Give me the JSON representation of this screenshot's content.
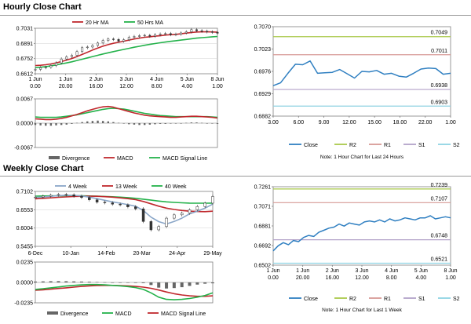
{
  "sections": {
    "hourly_title": "Hourly Close Chart",
    "weekly_title": "Weekly Close Chart"
  },
  "colors": {
    "red": "#c0282d",
    "green": "#24b24b",
    "blue": "#2f7fc1",
    "steel": "#8aa6c8",
    "r2": "#a9c84a",
    "r1": "#d79a96",
    "s1": "#b3a2c9",
    "s2": "#8fd3e3",
    "bar": "#666666",
    "grid": "#d0d0d0",
    "axis": "#7f7f7f"
  },
  "chart_data": [
    {
      "id": "hourly_price",
      "type": "line",
      "title": "Hourly Close Chart",
      "ylim": [
        0.6612,
        0.7031
      ],
      "y_ticks": [
        "0.7031",
        "0.6891",
        "0.6752",
        "0.6612"
      ],
      "x_ticks": [
        [
          "1 Jun",
          "0.00"
        ],
        [
          "1 Jun",
          "20.00"
        ],
        [
          "2 Jun",
          "16.00"
        ],
        [
          "3 Jun",
          "12.00"
        ],
        [
          "4 Jun",
          "8.00"
        ],
        [
          "5 Jun",
          "4.00"
        ],
        [
          "8 Jun",
          "1.00"
        ]
      ],
      "legend": [
        "20 Hr MA",
        "50 Hrs MA"
      ],
      "close": [
        0.6652,
        0.6668,
        0.6672,
        0.6688,
        0.6712,
        0.6748,
        0.6768,
        0.6782,
        0.6816,
        0.6852,
        0.6858,
        0.6872,
        0.6895,
        0.6918,
        0.6932,
        0.6928,
        0.6912,
        0.6925,
        0.6948,
        0.6955,
        0.6962,
        0.6966,
        0.6958,
        0.6972,
        0.6978,
        0.6982,
        0.6972,
        0.6976,
        0.6988,
        0.6998,
        0.7018,
        0.7008,
        0.7004,
        0.6998,
        0.6994,
        0.6985
      ],
      "ma20": [
        0.6688,
        0.669,
        0.6695,
        0.6702,
        0.6712,
        0.6724,
        0.6738,
        0.6752,
        0.677,
        0.679,
        0.681,
        0.683,
        0.6848,
        0.6866,
        0.688,
        0.6892,
        0.6902,
        0.6912,
        0.6922,
        0.6932,
        0.694,
        0.6948,
        0.6952,
        0.6958,
        0.6962,
        0.6968,
        0.6972,
        0.6975,
        0.698,
        0.6986,
        0.6992,
        0.6996,
        0.6998,
        0.6998,
        0.6997,
        0.6994
      ],
      "ma50": [
        0.6668,
        0.6672,
        0.6678,
        0.6685,
        0.6693,
        0.6702,
        0.6712,
        0.6722,
        0.6734,
        0.6746,
        0.6758,
        0.677,
        0.6782,
        0.6794,
        0.6805,
        0.6816,
        0.6826,
        0.6836,
        0.6846,
        0.6856,
        0.6865,
        0.6874,
        0.6882,
        0.689,
        0.6897,
        0.6904,
        0.691,
        0.6916,
        0.6922,
        0.6928,
        0.6934,
        0.694,
        0.6944,
        0.6948,
        0.6952,
        0.6955
      ]
    },
    {
      "id": "hourly_macd",
      "type": "bar",
      "ylim": [
        -0.0067,
        0.0067
      ],
      "y_ticks": [
        "0.0067",
        "0.0000",
        "-0.0067"
      ],
      "legend": [
        "Divergence",
        "MACD",
        "MACD Signal Line"
      ],
      "divergence": [
        -0.0005,
        -0.0006,
        -0.0007,
        -0.0007,
        -0.0006,
        -0.0005,
        -0.0004,
        -0.0002,
        0.0001,
        0.0003,
        0.0005,
        0.0006,
        0.0007,
        0.0006,
        0.0005,
        0.0003,
        0.0001,
        -0.0001,
        -0.0003,
        -0.0004,
        -0.0005,
        -0.0005,
        -0.0004,
        -0.0003,
        -0.0002,
        -0.0002,
        -0.0001,
        -0.0001,
        0.0,
        0.0001,
        0.0002,
        0.0002,
        0.0001,
        0.0,
        -0.0001,
        -0.0002
      ],
      "macd": [
        0.0012,
        0.0011,
        0.001,
        0.001,
        0.0011,
        0.0013,
        0.0016,
        0.002,
        0.0024,
        0.0029,
        0.0034,
        0.0038,
        0.0042,
        0.0045,
        0.0046,
        0.0044,
        0.004,
        0.0036,
        0.0032,
        0.0028,
        0.0025,
        0.0022,
        0.002,
        0.0019,
        0.0018,
        0.0017,
        0.0016,
        0.0016,
        0.0017,
        0.0018,
        0.0019,
        0.0019,
        0.0018,
        0.0017,
        0.0016,
        0.0014
      ],
      "signal": [
        0.0017,
        0.0016,
        0.0016,
        0.0016,
        0.0016,
        0.0017,
        0.0019,
        0.0021,
        0.0023,
        0.0026,
        0.0029,
        0.0032,
        0.0035,
        0.0038,
        0.004,
        0.0041,
        0.004,
        0.0039,
        0.0036,
        0.0033,
        0.003,
        0.0027,
        0.0025,
        0.0023,
        0.0021,
        0.002,
        0.0019,
        0.0018,
        0.0018,
        0.0018,
        0.0018,
        0.0018,
        0.0018,
        0.0018,
        0.0017,
        0.0016
      ]
    },
    {
      "id": "hourly_24h",
      "type": "line",
      "ylim": [
        0.6882,
        0.707
      ],
      "y_ticks": [
        "0.7070",
        "0.7023",
        "0.6976",
        "0.6929",
        "0.6882"
      ],
      "x_ticks": [
        "3.00",
        "6.00",
        "9.00",
        "12.00",
        "15.00",
        "18.00",
        "22.00",
        "1.00"
      ],
      "levels": {
        "R2": 0.7049,
        "R1": 0.7011,
        "S1": 0.6938,
        "S2": 0.6903
      },
      "level_labels": {
        "R2": "0.7049",
        "R1": "0.7011",
        "S1": "0.6938",
        "S2": "0.6903"
      },
      "close": [
        0.6946,
        0.6952,
        0.6972,
        0.6991,
        0.699,
        0.6998,
        0.6972,
        0.6973,
        0.6974,
        0.698,
        0.6971,
        0.6962,
        0.6976,
        0.6975,
        0.6978,
        0.697,
        0.6972,
        0.6966,
        0.6964,
        0.6972,
        0.6981,
        0.6983,
        0.6982,
        0.697,
        0.6972
      ],
      "legend": [
        "Close",
        "R2",
        "R1",
        "S1",
        "S2"
      ],
      "note": "Note: 1 Hour Chart for Last 24 Hours"
    },
    {
      "id": "weekly_price",
      "type": "line",
      "title": "Weekly Close Chart",
      "ylim": [
        0.5455,
        0.7102
      ],
      "y_ticks": [
        "0.7102",
        "0.6553",
        "0.6004",
        "0.5455"
      ],
      "x_ticks": [
        "6-Dec",
        "10-Jan",
        "14-Feb",
        "20-Mar",
        "24-Apr",
        "29-May"
      ],
      "legend": [
        "4 Week",
        "13 Week",
        "40 Week"
      ],
      "close": [
        0.693,
        0.696,
        0.699,
        0.701,
        0.7,
        0.696,
        0.692,
        0.685,
        0.678,
        0.676,
        0.672,
        0.67,
        0.664,
        0.658,
        0.62,
        0.595,
        0.605,
        0.63,
        0.64,
        0.645,
        0.655,
        0.665,
        0.675,
        0.695
      ],
      "ma4": [
        0.692,
        0.6935,
        0.6955,
        0.6975,
        0.699,
        0.6985,
        0.6965,
        0.693,
        0.6885,
        0.6835,
        0.679,
        0.675,
        0.6705,
        0.666,
        0.653,
        0.633,
        0.6195,
        0.6125,
        0.62,
        0.63,
        0.643,
        0.651,
        0.66,
        0.672
      ],
      "ma13": [
        0.688,
        0.6895,
        0.691,
        0.6925,
        0.6938,
        0.6948,
        0.6955,
        0.6958,
        0.6955,
        0.6945,
        0.693,
        0.691,
        0.6885,
        0.6855,
        0.68,
        0.673,
        0.666,
        0.66,
        0.656,
        0.653,
        0.651,
        0.65,
        0.6495,
        0.651
      ],
      "ma40": [
        0.696,
        0.6965,
        0.6968,
        0.697,
        0.6972,
        0.6972,
        0.697,
        0.6966,
        0.696,
        0.6952,
        0.6942,
        0.693,
        0.6915,
        0.6895,
        0.687,
        0.684,
        0.6812,
        0.679,
        0.6772,
        0.676,
        0.6752,
        0.6748,
        0.6748,
        0.6752
      ]
    },
    {
      "id": "weekly_macd",
      "type": "bar",
      "ylim": [
        -0.0235,
        0.0235
      ],
      "y_ticks": [
        "0.0235",
        "0.0000",
        "-0.0235"
      ],
      "legend": [
        "Divergence",
        "MACD",
        "MACD Signal Line"
      ],
      "divergence": [
        0.001,
        0.0012,
        0.0014,
        0.0015,
        0.0014,
        0.0012,
        0.001,
        0.0008,
        0.0005,
        0.0002,
        0.0,
        -0.0002,
        -0.0004,
        -0.0006,
        -0.0008,
        -0.003,
        -0.006,
        -0.007,
        -0.0065,
        -0.0055,
        -0.004,
        -0.0025,
        -0.0015,
        -0.001
      ],
      "macd": [
        -0.008,
        -0.0072,
        -0.0062,
        -0.0052,
        -0.0042,
        -0.0034,
        -0.0028,
        -0.0024,
        -0.0024,
        -0.0028,
        -0.0034,
        -0.004,
        -0.0048,
        -0.006,
        -0.008,
        -0.012,
        -0.017,
        -0.0195,
        -0.02,
        -0.0195,
        -0.0185,
        -0.017,
        -0.015,
        -0.012
      ],
      "signal": [
        -0.009,
        -0.0085,
        -0.0078,
        -0.007,
        -0.0062,
        -0.0054,
        -0.0046,
        -0.004,
        -0.0036,
        -0.0034,
        -0.0034,
        -0.0036,
        -0.004,
        -0.0046,
        -0.0054,
        -0.0068,
        -0.0088,
        -0.011,
        -0.013,
        -0.0145,
        -0.0155,
        -0.016,
        -0.016,
        -0.0155
      ]
    },
    {
      "id": "weekly_1w",
      "type": "line",
      "ylim": [
        0.6502,
        0.7261
      ],
      "y_ticks": [
        "0.7261",
        "0.7071",
        "0.6881",
        "0.6692",
        "0.6502"
      ],
      "x_ticks": [
        [
          "1 Jun",
          "0.00"
        ],
        [
          "1 Jun",
          "20.00"
        ],
        [
          "2 Jun",
          "16.00"
        ],
        [
          "3 Jun",
          "12.00"
        ],
        [
          "4 Jun",
          "8.00"
        ],
        [
          "5 Jun",
          "4.00"
        ],
        [
          "8 Jun",
          "1.00"
        ]
      ],
      "levels": {
        "R2": 0.7239,
        "R1": 0.7107,
        "S1": 0.6748,
        "S2": 0.6521
      },
      "level_labels": {
        "R2": "0.7239",
        "R1": "0.7107",
        "S1": "0.6748",
        "S2": "0.6521"
      },
      "close": [
        0.664,
        0.669,
        0.672,
        0.67,
        0.674,
        0.673,
        0.677,
        0.679,
        0.678,
        0.682,
        0.684,
        0.686,
        0.687,
        0.69,
        0.688,
        0.691,
        0.69,
        0.689,
        0.692,
        0.693,
        0.692,
        0.694,
        0.692,
        0.695,
        0.693,
        0.694,
        0.696,
        0.695,
        0.694,
        0.696,
        0.696,
        0.698,
        0.695,
        0.696,
        0.697,
        0.696
      ],
      "legend": [
        "Close",
        "R2",
        "R1",
        "S1",
        "S2"
      ],
      "note": "Note: 1 Hour Chart for Last 1 Week"
    }
  ]
}
